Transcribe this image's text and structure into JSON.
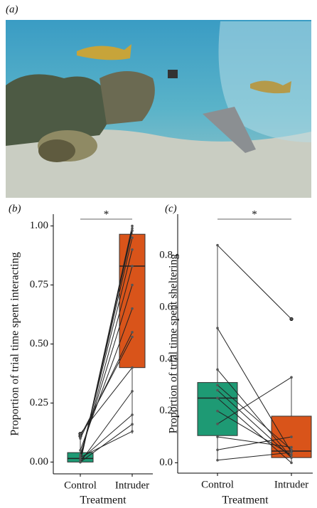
{
  "panel_a": {
    "label": "(a)"
  },
  "chart_data": [
    {
      "type": "box",
      "panel_label": "(b)",
      "y_label": "Proportion of trial time spent interacting",
      "x_label": "Treatment",
      "categories": [
        "Control",
        "Intruder"
      ],
      "boxes": [
        {
          "min": 0,
          "q1": 0,
          "median": 0.015,
          "q3": 0.04,
          "max": 0.1,
          "color": "#1e9a74"
        },
        {
          "min": 0.12,
          "q1": 0.4,
          "median": 0.83,
          "q3": 0.965,
          "max": 1.0,
          "color": "#d9541a"
        }
      ],
      "outliers": [
        [
          0.11,
          0.12
        ],
        []
      ],
      "paired_values": [
        [
          0,
          1.0
        ],
        [
          0,
          0.99
        ],
        [
          0,
          0.98
        ],
        [
          0.01,
          0.95
        ],
        [
          0.02,
          0.9
        ],
        [
          0.02,
          0.83
        ],
        [
          0.03,
          0.75
        ],
        [
          0.05,
          0.65
        ],
        [
          0.1,
          0.55
        ],
        [
          0.11,
          0.53
        ],
        [
          0.12,
          0.4
        ],
        [
          0,
          0.3
        ],
        [
          0.01,
          0.2
        ],
        [
          0,
          0.16
        ],
        [
          0.02,
          0.13
        ]
      ],
      "ylim": [
        -0.05,
        1.05
      ],
      "yticks": [
        {
          "value": 0,
          "label": "0.00"
        },
        {
          "value": 0.25,
          "label": "0.25"
        },
        {
          "value": 0.5,
          "label": "0.50"
        },
        {
          "value": 0.75,
          "label": "0.75"
        },
        {
          "value": 1,
          "label": "1.00"
        }
      ],
      "annotation": "*"
    },
    {
      "type": "box",
      "panel_label": "(c)",
      "y_label": "Proportion of trial time spent sheltering",
      "x_label": "Treatment",
      "categories": [
        "Control",
        "Intruder"
      ],
      "boxes": [
        {
          "min": 0.01,
          "q1": 0.105,
          "median": 0.25,
          "q3": 0.31,
          "max": 0.84,
          "color": "#1e9a74"
        },
        {
          "min": 0,
          "q1": 0.02,
          "median": 0.045,
          "q3": 0.18,
          "max": 0.33,
          "color": "#d9541a"
        }
      ],
      "outliers": [
        [],
        [
          0.555
        ]
      ],
      "paired_values": [
        [
          0.84,
          0.555
        ],
        [
          0.52,
          0.04
        ],
        [
          0.36,
          0.02
        ],
        [
          0.3,
          0.05
        ],
        [
          0.28,
          0.02
        ],
        [
          0.25,
          0
        ],
        [
          0.2,
          0.03
        ],
        [
          0.15,
          0.33
        ],
        [
          0.1,
          0.06
        ],
        [
          0.05,
          0.1
        ],
        [
          0.01,
          0.04
        ]
      ],
      "ylim": [
        -0.04,
        0.96
      ],
      "yticks": [
        {
          "value": 0,
          "label": "0.0"
        },
        0.2,
        0.4,
        0.6,
        0.8
      ],
      "annotation": "*"
    }
  ]
}
